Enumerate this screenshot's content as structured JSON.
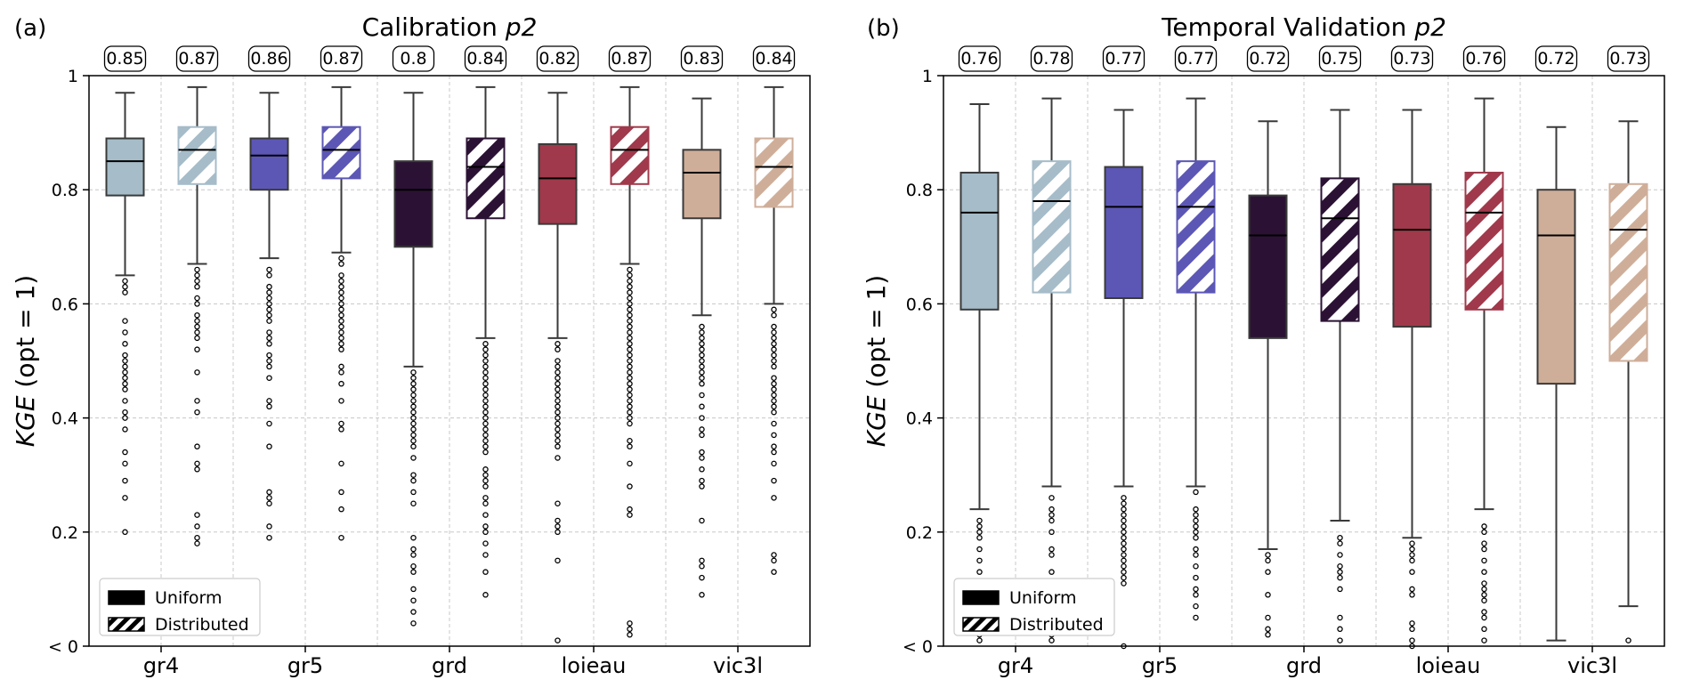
{
  "chart_data": [
    {
      "type": "box",
      "panel_label": "(a)",
      "title": "Calibration ",
      "title_italic": "p2",
      "ylabel_italic": "KGE",
      "ylabel_rest": " (opt = 1)",
      "ylim": [
        0,
        1
      ],
      "yticks": [
        {
          "v": 0,
          "label": "< 0"
        },
        {
          "v": 0.2,
          "label": "0.2"
        },
        {
          "v": 0.4,
          "label": "0.4"
        },
        {
          "v": 0.6,
          "label": "0.6"
        },
        {
          "v": 0.8,
          "label": "0.8"
        },
        {
          "v": 1,
          "label": "1"
        }
      ],
      "categories": [
        "gr4",
        "gr5",
        "grd",
        "loieau",
        "vic3l"
      ],
      "grid": true,
      "legend_position": "lower-left",
      "legend": [
        {
          "label": "Uniform",
          "pattern": "solid"
        },
        {
          "label": "Distributed",
          "pattern": "hatched"
        }
      ],
      "boxes": [
        {
          "model": "gr4",
          "type": "Uniform",
          "median": 0.85,
          "q1": 0.79,
          "q3": 0.89,
          "wlo": 0.65,
          "whi": 0.97,
          "color": "#a6bcc9",
          "hatched": false,
          "outliers": [
            0.64,
            0.63,
            0.62,
            0.57,
            0.55,
            0.53,
            0.51,
            0.5,
            0.49,
            0.48,
            0.47,
            0.46,
            0.45,
            0.43,
            0.41,
            0.4,
            0.38,
            0.34,
            0.32,
            0.29,
            0.26,
            0.2
          ]
        },
        {
          "model": "gr4",
          "type": "Distributed",
          "median": 0.87,
          "q1": 0.81,
          "q3": 0.91,
          "wlo": 0.67,
          "whi": 0.98,
          "color": "#a6bcc9",
          "hatched": true,
          "outliers": [
            0.66,
            0.65,
            0.64,
            0.63,
            0.61,
            0.6,
            0.58,
            0.57,
            0.56,
            0.55,
            0.54,
            0.52,
            0.48,
            0.43,
            0.41,
            0.35,
            0.32,
            0.31,
            0.23,
            0.21,
            0.19,
            0.18
          ]
        },
        {
          "model": "gr5",
          "type": "Uniform",
          "median": 0.86,
          "q1": 0.8,
          "q3": 0.89,
          "wlo": 0.68,
          "whi": 0.97,
          "color": "#5c57b5",
          "hatched": false,
          "outliers": [
            0.66,
            0.65,
            0.63,
            0.62,
            0.61,
            0.6,
            0.59,
            0.58,
            0.57,
            0.55,
            0.54,
            0.53,
            0.51,
            0.5,
            0.49,
            0.47,
            0.43,
            0.42,
            0.39,
            0.35,
            0.27,
            0.26,
            0.25,
            0.21,
            0.19
          ]
        },
        {
          "model": "gr5",
          "type": "Distributed",
          "median": 0.87,
          "q1": 0.82,
          "q3": 0.91,
          "wlo": 0.69,
          "whi": 0.98,
          "color": "#5c57b5",
          "hatched": true,
          "outliers": [
            0.68,
            0.67,
            0.65,
            0.64,
            0.63,
            0.62,
            0.61,
            0.6,
            0.59,
            0.58,
            0.57,
            0.56,
            0.55,
            0.54,
            0.53,
            0.52,
            0.49,
            0.48,
            0.46,
            0.43,
            0.39,
            0.38,
            0.32,
            0.27,
            0.24,
            0.19
          ]
        },
        {
          "model": "grd",
          "type": "Uniform",
          "median": 0.8,
          "q1": 0.7,
          "q3": 0.85,
          "wlo": 0.49,
          "whi": 0.97,
          "color": "#2b1234",
          "hatched": false,
          "outliers": [
            0.48,
            0.47,
            0.46,
            0.45,
            0.44,
            0.43,
            0.42,
            0.41,
            0.4,
            0.39,
            0.38,
            0.37,
            0.36,
            0.35,
            0.33,
            0.3,
            0.29,
            0.27,
            0.25,
            0.19,
            0.17,
            0.16,
            0.14,
            0.13,
            0.1,
            0.08,
            0.06,
            0.04
          ]
        },
        {
          "model": "grd",
          "type": "Distributed",
          "median": 0.84,
          "q1": 0.75,
          "q3": 0.89,
          "wlo": 0.54,
          "whi": 0.98,
          "color": "#2b1234",
          "hatched": true,
          "outliers": [
            0.53,
            0.52,
            0.51,
            0.5,
            0.49,
            0.48,
            0.47,
            0.46,
            0.45,
            0.44,
            0.43,
            0.42,
            0.41,
            0.4,
            0.39,
            0.38,
            0.37,
            0.36,
            0.35,
            0.34,
            0.31,
            0.3,
            0.29,
            0.28,
            0.26,
            0.25,
            0.23,
            0.21,
            0.2,
            0.18,
            0.16,
            0.13,
            0.09
          ]
        },
        {
          "model": "loieau",
          "type": "Uniform",
          "median": 0.82,
          "q1": 0.74,
          "q3": 0.88,
          "wlo": 0.54,
          "whi": 0.97,
          "color": "#a0394b",
          "hatched": false,
          "outliers": [
            0.53,
            0.52,
            0.5,
            0.49,
            0.48,
            0.47,
            0.46,
            0.45,
            0.44,
            0.43,
            0.42,
            0.41,
            0.4,
            0.39,
            0.38,
            0.37,
            0.36,
            0.35,
            0.33,
            0.25,
            0.22,
            0.21,
            0.2,
            0.15,
            0.01
          ]
        },
        {
          "model": "loieau",
          "type": "Distributed",
          "median": 0.87,
          "q1": 0.81,
          "q3": 0.91,
          "wlo": 0.67,
          "whi": 0.98,
          "color": "#a0394b",
          "hatched": true,
          "outliers": [
            0.66,
            0.65,
            0.64,
            0.63,
            0.62,
            0.61,
            0.6,
            0.59,
            0.58,
            0.57,
            0.56,
            0.55,
            0.54,
            0.53,
            0.52,
            0.51,
            0.5,
            0.49,
            0.48,
            0.47,
            0.46,
            0.45,
            0.44,
            0.43,
            0.42,
            0.41,
            0.4,
            0.39,
            0.36,
            0.35,
            0.32,
            0.28,
            0.24,
            0.23,
            0.04,
            0.03,
            0.02
          ]
        },
        {
          "model": "vic3l",
          "type": "Uniform",
          "median": 0.83,
          "q1": 0.75,
          "q3": 0.87,
          "wlo": 0.58,
          "whi": 0.96,
          "color": "#cfae99",
          "hatched": false,
          "outliers": [
            0.56,
            0.55,
            0.54,
            0.53,
            0.52,
            0.51,
            0.5,
            0.49,
            0.48,
            0.47,
            0.46,
            0.44,
            0.42,
            0.4,
            0.38,
            0.37,
            0.34,
            0.33,
            0.31,
            0.29,
            0.28,
            0.22,
            0.15,
            0.14,
            0.12,
            0.09
          ]
        },
        {
          "model": "vic3l",
          "type": "Distributed",
          "median": 0.84,
          "q1": 0.77,
          "q3": 0.89,
          "wlo": 0.6,
          "whi": 0.98,
          "color": "#cfae99",
          "hatched": true,
          "outliers": [
            0.59,
            0.58,
            0.56,
            0.55,
            0.54,
            0.53,
            0.52,
            0.51,
            0.5,
            0.49,
            0.47,
            0.46,
            0.45,
            0.44,
            0.43,
            0.42,
            0.41,
            0.39,
            0.37,
            0.35,
            0.34,
            0.32,
            0.29,
            0.26,
            0.16,
            0.15,
            0.13
          ]
        }
      ]
    },
    {
      "type": "box",
      "panel_label": "(b)",
      "title": "Temporal Validation ",
      "title_italic": "p2",
      "ylabel_italic": "KGE",
      "ylabel_rest": " (opt = 1)",
      "ylim": [
        0,
        1
      ],
      "yticks": [
        {
          "v": 0,
          "label": "< 0"
        },
        {
          "v": 0.2,
          "label": "0.2"
        },
        {
          "v": 0.4,
          "label": "0.4"
        },
        {
          "v": 0.6,
          "label": "0.6"
        },
        {
          "v": 0.8,
          "label": "0.8"
        },
        {
          "v": 1,
          "label": "1"
        }
      ],
      "categories": [
        "gr4",
        "gr5",
        "grd",
        "loieau",
        "vic3l"
      ],
      "grid": true,
      "legend_position": "lower-left",
      "legend": [
        {
          "label": "Uniform",
          "pattern": "solid"
        },
        {
          "label": "Distributed",
          "pattern": "hatched"
        }
      ],
      "boxes": [
        {
          "model": "gr4",
          "type": "Uniform",
          "median": 0.76,
          "q1": 0.59,
          "q3": 0.83,
          "wlo": 0.24,
          "whi": 0.95,
          "color": "#a6bcc9",
          "hatched": false,
          "outliers": [
            0.22,
            0.21,
            0.2,
            0.19,
            0.17,
            0.15,
            0.13,
            0.11,
            0.08,
            0.04,
            0.02,
            0.01
          ]
        },
        {
          "model": "gr4",
          "type": "Distributed",
          "median": 0.78,
          "q1": 0.62,
          "q3": 0.85,
          "wlo": 0.28,
          "whi": 0.96,
          "color": "#a6bcc9",
          "hatched": true,
          "outliers": [
            0.26,
            0.24,
            0.23,
            0.22,
            0.2,
            0.17,
            0.16,
            0.13,
            0.11,
            0.08,
            0.04,
            0.02,
            0.01
          ]
        },
        {
          "model": "gr5",
          "type": "Uniform",
          "median": 0.77,
          "q1": 0.61,
          "q3": 0.84,
          "wlo": 0.28,
          "whi": 0.94,
          "color": "#5c57b5",
          "hatched": false,
          "outliers": [
            0.26,
            0.25,
            0.24,
            0.23,
            0.22,
            0.21,
            0.2,
            0.19,
            0.18,
            0.17,
            0.16,
            0.15,
            0.14,
            0.13,
            0.12,
            0.11,
            0.0
          ]
        },
        {
          "model": "gr5",
          "type": "Distributed",
          "median": 0.77,
          "q1": 0.62,
          "q3": 0.85,
          "wlo": 0.28,
          "whi": 0.96,
          "color": "#5c57b5",
          "hatched": true,
          "outliers": [
            0.27,
            0.24,
            0.23,
            0.22,
            0.21,
            0.2,
            0.19,
            0.17,
            0.16,
            0.14,
            0.12,
            0.1,
            0.09,
            0.07,
            0.05
          ]
        },
        {
          "model": "grd",
          "type": "Uniform",
          "median": 0.72,
          "q1": 0.54,
          "q3": 0.79,
          "wlo": 0.17,
          "whi": 0.92,
          "color": "#2b1234",
          "hatched": false,
          "outliers": [
            0.16,
            0.15,
            0.13,
            0.09,
            0.05,
            0.03,
            0.02
          ]
        },
        {
          "model": "grd",
          "type": "Distributed",
          "median": 0.75,
          "q1": 0.57,
          "q3": 0.82,
          "wlo": 0.22,
          "whi": 0.94,
          "color": "#2b1234",
          "hatched": true,
          "outliers": [
            0.19,
            0.18,
            0.16,
            0.14,
            0.13,
            0.12,
            0.1,
            0.05,
            0.03,
            0.01
          ]
        },
        {
          "model": "loieau",
          "type": "Uniform",
          "median": 0.73,
          "q1": 0.56,
          "q3": 0.81,
          "wlo": 0.19,
          "whi": 0.94,
          "color": "#a0394b",
          "hatched": false,
          "outliers": [
            0.18,
            0.17,
            0.16,
            0.15,
            0.13,
            0.1,
            0.09,
            0.04,
            0.03,
            0.01,
            0.0
          ]
        },
        {
          "model": "loieau",
          "type": "Distributed",
          "median": 0.76,
          "q1": 0.59,
          "q3": 0.83,
          "wlo": 0.24,
          "whi": 0.96,
          "color": "#a0394b",
          "hatched": true,
          "outliers": [
            0.21,
            0.2,
            0.18,
            0.17,
            0.15,
            0.13,
            0.11,
            0.1,
            0.09,
            0.08,
            0.06,
            0.05,
            0.03,
            0.01
          ]
        },
        {
          "model": "vic3l",
          "type": "Uniform",
          "median": 0.72,
          "q1": 0.46,
          "q3": 0.8,
          "wlo": 0.01,
          "whi": 0.91,
          "color": "#cfae99",
          "hatched": false,
          "outliers": []
        },
        {
          "model": "vic3l",
          "type": "Distributed",
          "median": 0.73,
          "q1": 0.5,
          "q3": 0.81,
          "wlo": 0.07,
          "whi": 0.92,
          "color": "#cfae99",
          "hatched": true,
          "outliers": [
            0.01
          ]
        }
      ]
    }
  ]
}
